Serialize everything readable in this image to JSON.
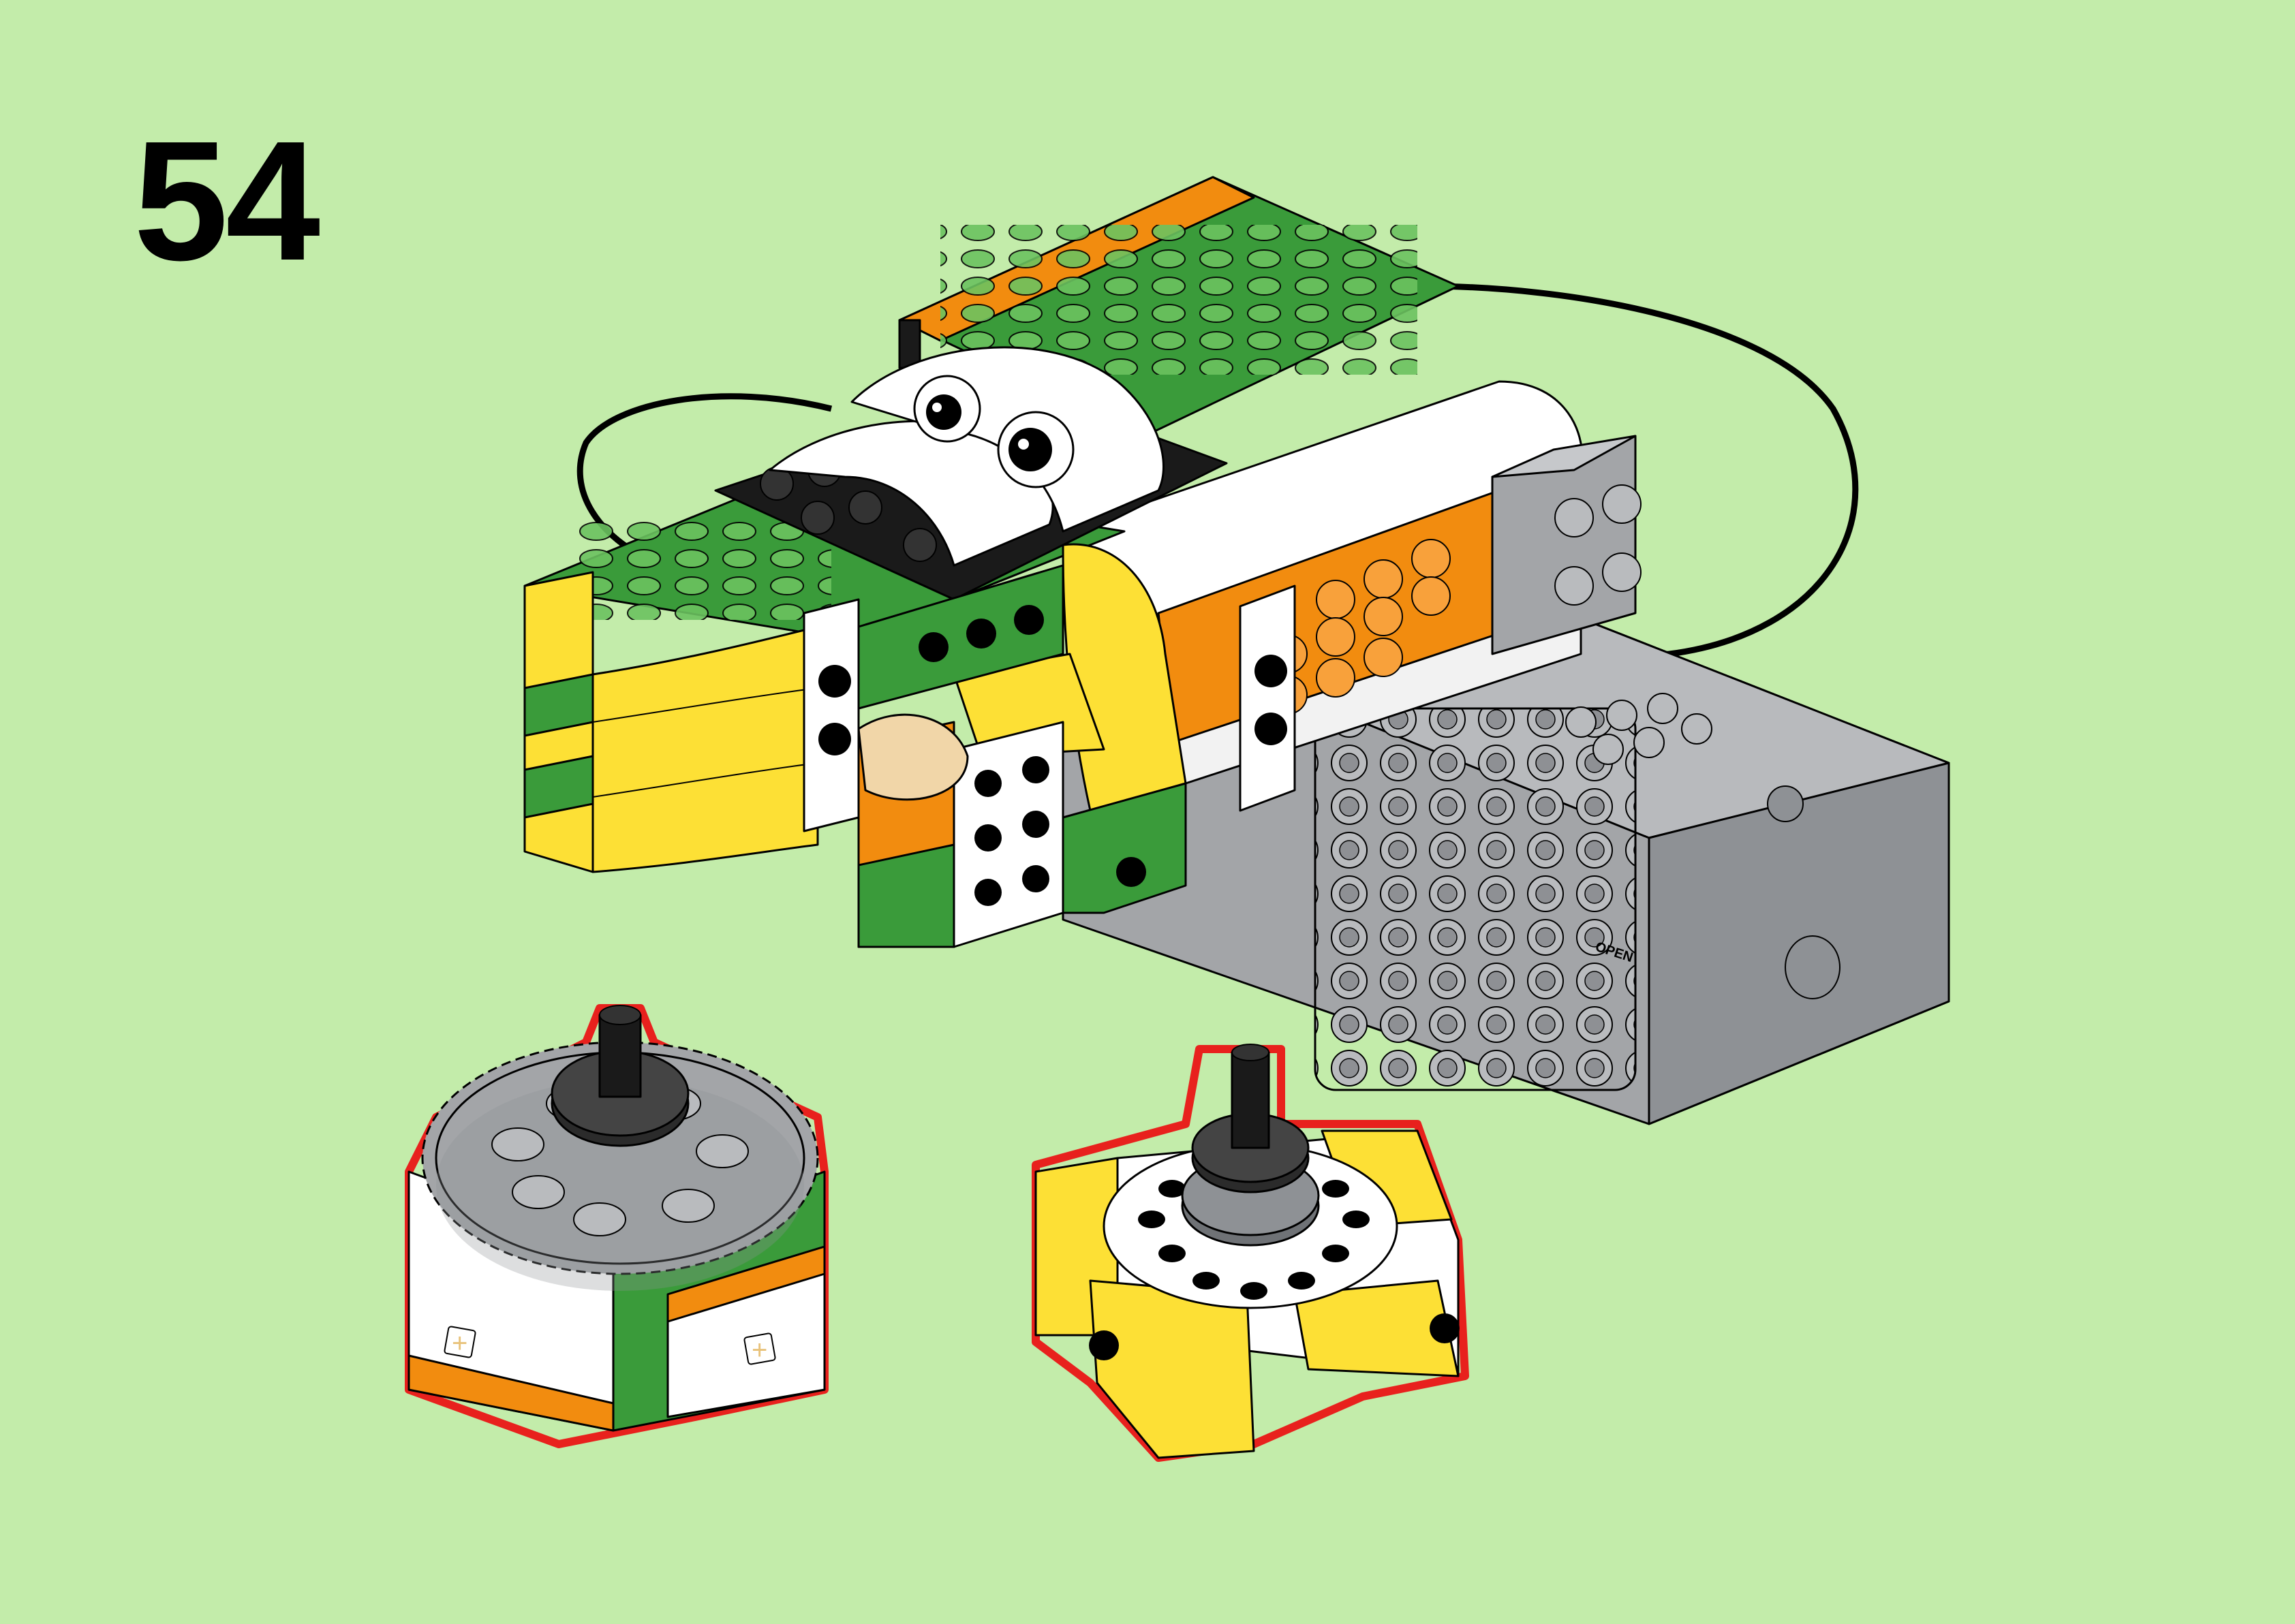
{
  "step": {
    "number": "54"
  },
  "colors": {
    "background": "#c3ecaa",
    "green": "#3a9b3a",
    "light_green": "#55b54a",
    "orange": "#f28c0f",
    "yellow": "#fde035",
    "white": "#ffffff",
    "black": "#1a1a1a",
    "grey": "#a3a5a8",
    "dark_grey": "#6f7276",
    "callout_outline": "#e8211d",
    "tan": "#f1d6a8"
  },
  "hub": {
    "label": "OPEN"
  },
  "icons": [
    "frog-model",
    "smarthub",
    "cable",
    "gear-subassembly",
    "turntable-subassembly"
  ]
}
